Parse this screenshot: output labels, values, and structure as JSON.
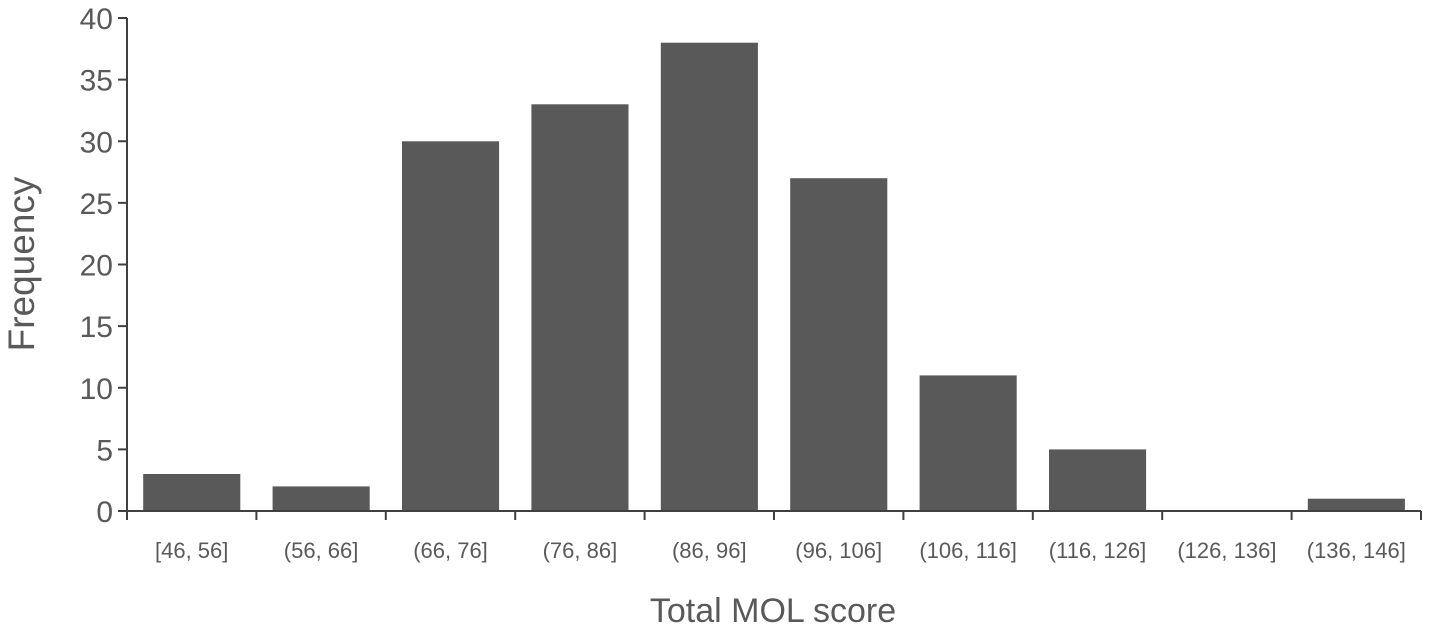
{
  "chart_data": {
    "type": "bar",
    "title": "",
    "xlabel": "Total MOL score",
    "ylabel": "Frequency",
    "categories": [
      "[46, 56]",
      "(56, 66]",
      "(66, 76]",
      "(76, 86]",
      "(86, 96]",
      "(96, 106]",
      "(106, 116]",
      "(116, 126]",
      "(126, 136]",
      "(136, 146]"
    ],
    "values": [
      3,
      2,
      30,
      33,
      38,
      27,
      11,
      5,
      0,
      1
    ],
    "ylim": [
      0,
      40
    ],
    "yticks": [
      0,
      5,
      10,
      15,
      20,
      25,
      30,
      35,
      40
    ],
    "grid": false,
    "legend": "none",
    "colors": {
      "bar": "#595959",
      "axis": "#404040",
      "text": "#595959"
    }
  }
}
